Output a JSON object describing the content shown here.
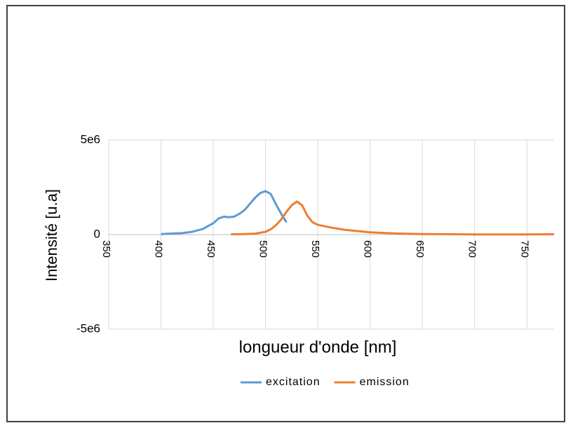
{
  "chart_data": {
    "type": "line",
    "xlabel": "longueur d'onde [nm]",
    "ylabel": "Intensité [u.a]",
    "xlim": [
      350,
      776
    ],
    "xticks": [
      350,
      400,
      450,
      500,
      550,
      600,
      650,
      700,
      750
    ],
    "ylim": [
      -5000000,
      5000000
    ],
    "yticks": [
      {
        "value": -5000000,
        "label": "-5e6"
      },
      0,
      {
        "value": 5000000,
        "label": "5e6"
      }
    ],
    "grid": true,
    "legend": "bottom",
    "series": [
      {
        "name": "excitation",
        "color": "#5b9bd5",
        "x": [
          400,
          420,
          430,
          440,
          450,
          455,
          460,
          465,
          470,
          475,
          480,
          490,
          495,
          500,
          505,
          510,
          515,
          520
        ],
        "values": [
          30000,
          80000,
          150000,
          300000,
          600000,
          850000,
          950000,
          920000,
          950000,
          1100000,
          1300000,
          1950000,
          2200000,
          2300000,
          2150000,
          1600000,
          1100000,
          650000
        ]
      },
      {
        "name": "emission",
        "color": "#ed7d31",
        "x": [
          467,
          480,
          490,
          500,
          505,
          510,
          515,
          520,
          525,
          530,
          535,
          540,
          545,
          550,
          560,
          575,
          600,
          625,
          650,
          700,
          750,
          776
        ],
        "values": [
          20000,
          30000,
          50000,
          150000,
          280000,
          500000,
          800000,
          1200000,
          1550000,
          1750000,
          1550000,
          1000000,
          650000,
          520000,
          400000,
          260000,
          120000,
          60000,
          30000,
          10000,
          10000,
          20000
        ]
      }
    ]
  }
}
